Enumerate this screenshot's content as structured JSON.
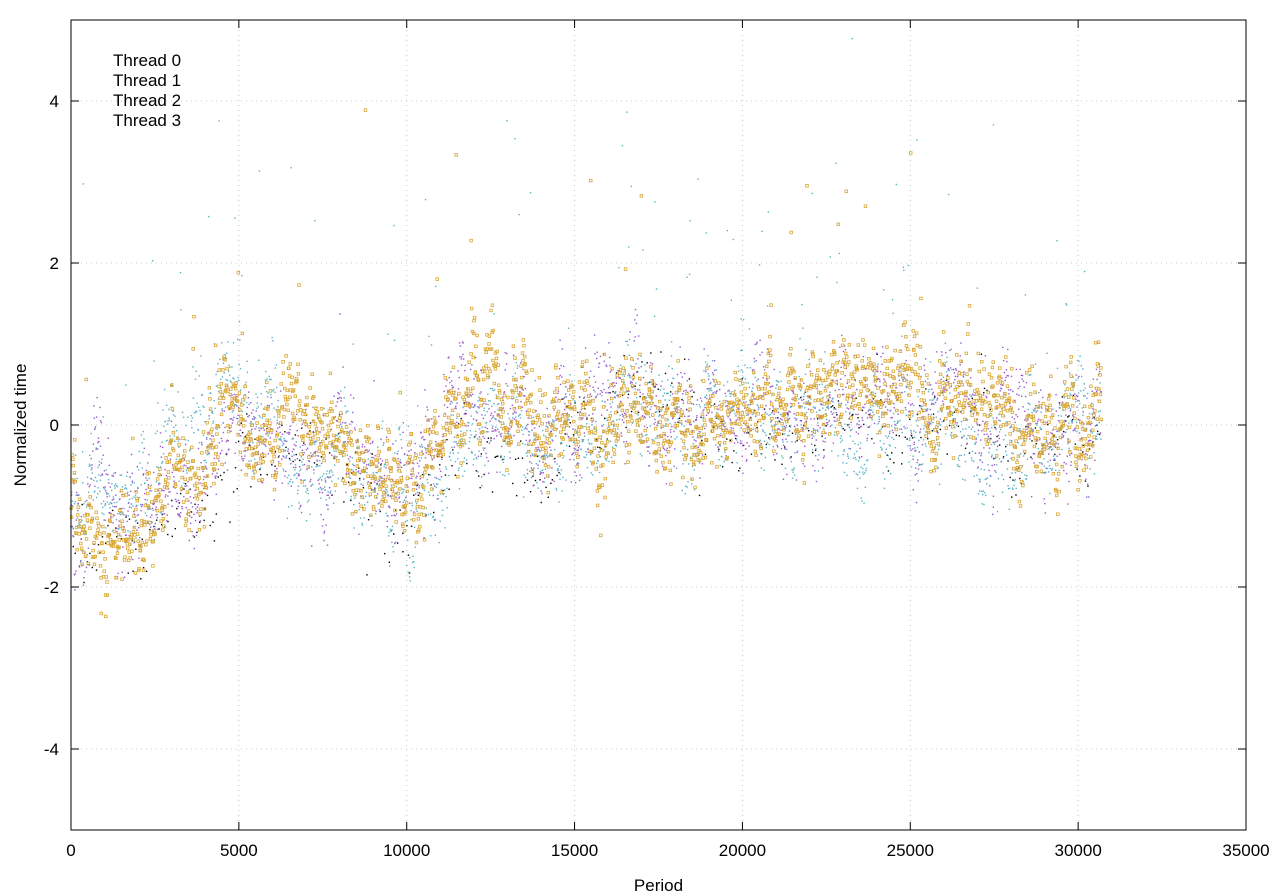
{
  "chart_data": {
    "type": "scatter",
    "title": "",
    "xlabel": "Period",
    "ylabel": "Normalized time",
    "xlim": [
      0,
      35000
    ],
    "ylim": [
      -5,
      5
    ],
    "xticks": [
      0,
      5000,
      10000,
      15000,
      20000,
      25000,
      30000,
      35000
    ],
    "xtick_labels": [
      "0",
      "5000",
      "10000",
      "15000",
      "20000",
      "25000",
      "30000",
      "35000"
    ],
    "yticks": [
      -4,
      -2,
      0,
      2,
      4
    ],
    "ytick_labels": [
      "-4",
      "-2",
      "0",
      "2",
      "4"
    ],
    "grid": true,
    "legend": {
      "position": "top-left"
    },
    "point_count_per_series": 30700,
    "series": [
      {
        "name": "Thread 0",
        "color": "#000000",
        "marker": "dot",
        "trend": [
          [
            0,
            -1.1
          ],
          [
            1000,
            -1.2
          ],
          [
            2000,
            -1.4
          ],
          [
            3000,
            -0.7
          ],
          [
            5000,
            -0.3
          ],
          [
            7000,
            -0.5
          ],
          [
            8000,
            -0.8
          ],
          [
            9000,
            -0.9
          ],
          [
            10000,
            -0.9
          ],
          [
            11000,
            -0.7
          ],
          [
            12000,
            0.0
          ],
          [
            14000,
            -0.2
          ],
          [
            16000,
            0.0
          ],
          [
            18000,
            0.1
          ],
          [
            20000,
            -0.1
          ],
          [
            22000,
            0.0
          ],
          [
            24000,
            0.2
          ],
          [
            26000,
            0.0
          ],
          [
            28000,
            -0.3
          ],
          [
            30000,
            -0.1
          ],
          [
            30700,
            0.0
          ]
        ]
      },
      {
        "name": "Thread 1",
        "color": "#9b59d0",
        "marker": "dot",
        "trend": [
          [
            0,
            -1.0
          ],
          [
            1000,
            -1.1
          ],
          [
            2000,
            -1.3
          ],
          [
            3000,
            -0.6
          ],
          [
            5000,
            0.0
          ],
          [
            7000,
            -0.4
          ],
          [
            8000,
            -0.6
          ],
          [
            9000,
            -0.7
          ],
          [
            10000,
            -0.5
          ],
          [
            11000,
            0.0
          ],
          [
            12000,
            0.4
          ],
          [
            14000,
            0.0
          ],
          [
            16000,
            0.1
          ],
          [
            18000,
            0.1
          ],
          [
            20000,
            0.0
          ],
          [
            22000,
            0.2
          ],
          [
            24000,
            0.3
          ],
          [
            26000,
            0.2
          ],
          [
            28000,
            -0.1
          ],
          [
            30000,
            0.0
          ],
          [
            30700,
            0.1
          ]
        ]
      },
      {
        "name": "Thread 2",
        "color": "#5ab4c8",
        "marker": "dot",
        "trend": [
          [
            0,
            -0.9
          ],
          [
            1000,
            -1.0
          ],
          [
            2000,
            -1.2
          ],
          [
            3000,
            -0.3
          ],
          [
            5000,
            0.3
          ],
          [
            7000,
            -0.3
          ],
          [
            8000,
            -0.6
          ],
          [
            9000,
            -0.8
          ],
          [
            10000,
            -0.9
          ],
          [
            11000,
            -0.8
          ],
          [
            12000,
            0.1
          ],
          [
            14000,
            0.0
          ],
          [
            16000,
            0.0
          ],
          [
            18000,
            0.1
          ],
          [
            20000,
            0.0
          ],
          [
            22000,
            0.1
          ],
          [
            24000,
            0.2
          ],
          [
            26000,
            0.0
          ],
          [
            28000,
            -0.2
          ],
          [
            30000,
            0.0
          ],
          [
            30700,
            0.2
          ]
        ]
      },
      {
        "name": "Thread 3",
        "color": "#d9a632",
        "marker": "square",
        "trend": [
          [
            0,
            -1.2
          ],
          [
            1000,
            -1.3
          ],
          [
            2000,
            -1.7
          ],
          [
            3000,
            -0.6
          ],
          [
            5000,
            0.0
          ],
          [
            7000,
            -0.2
          ],
          [
            8000,
            -0.3
          ],
          [
            9000,
            -0.6
          ],
          [
            10000,
            -0.7
          ],
          [
            11000,
            -0.2
          ],
          [
            12000,
            0.5
          ],
          [
            14000,
            0.1
          ],
          [
            16000,
            0.1
          ],
          [
            18000,
            0.2
          ],
          [
            20000,
            0.0
          ],
          [
            22000,
            0.3
          ],
          [
            24000,
            0.3
          ],
          [
            26000,
            0.3
          ],
          [
            28000,
            -0.2
          ],
          [
            30000,
            -0.1
          ],
          [
            30700,
            0.1
          ]
        ]
      }
    ]
  }
}
